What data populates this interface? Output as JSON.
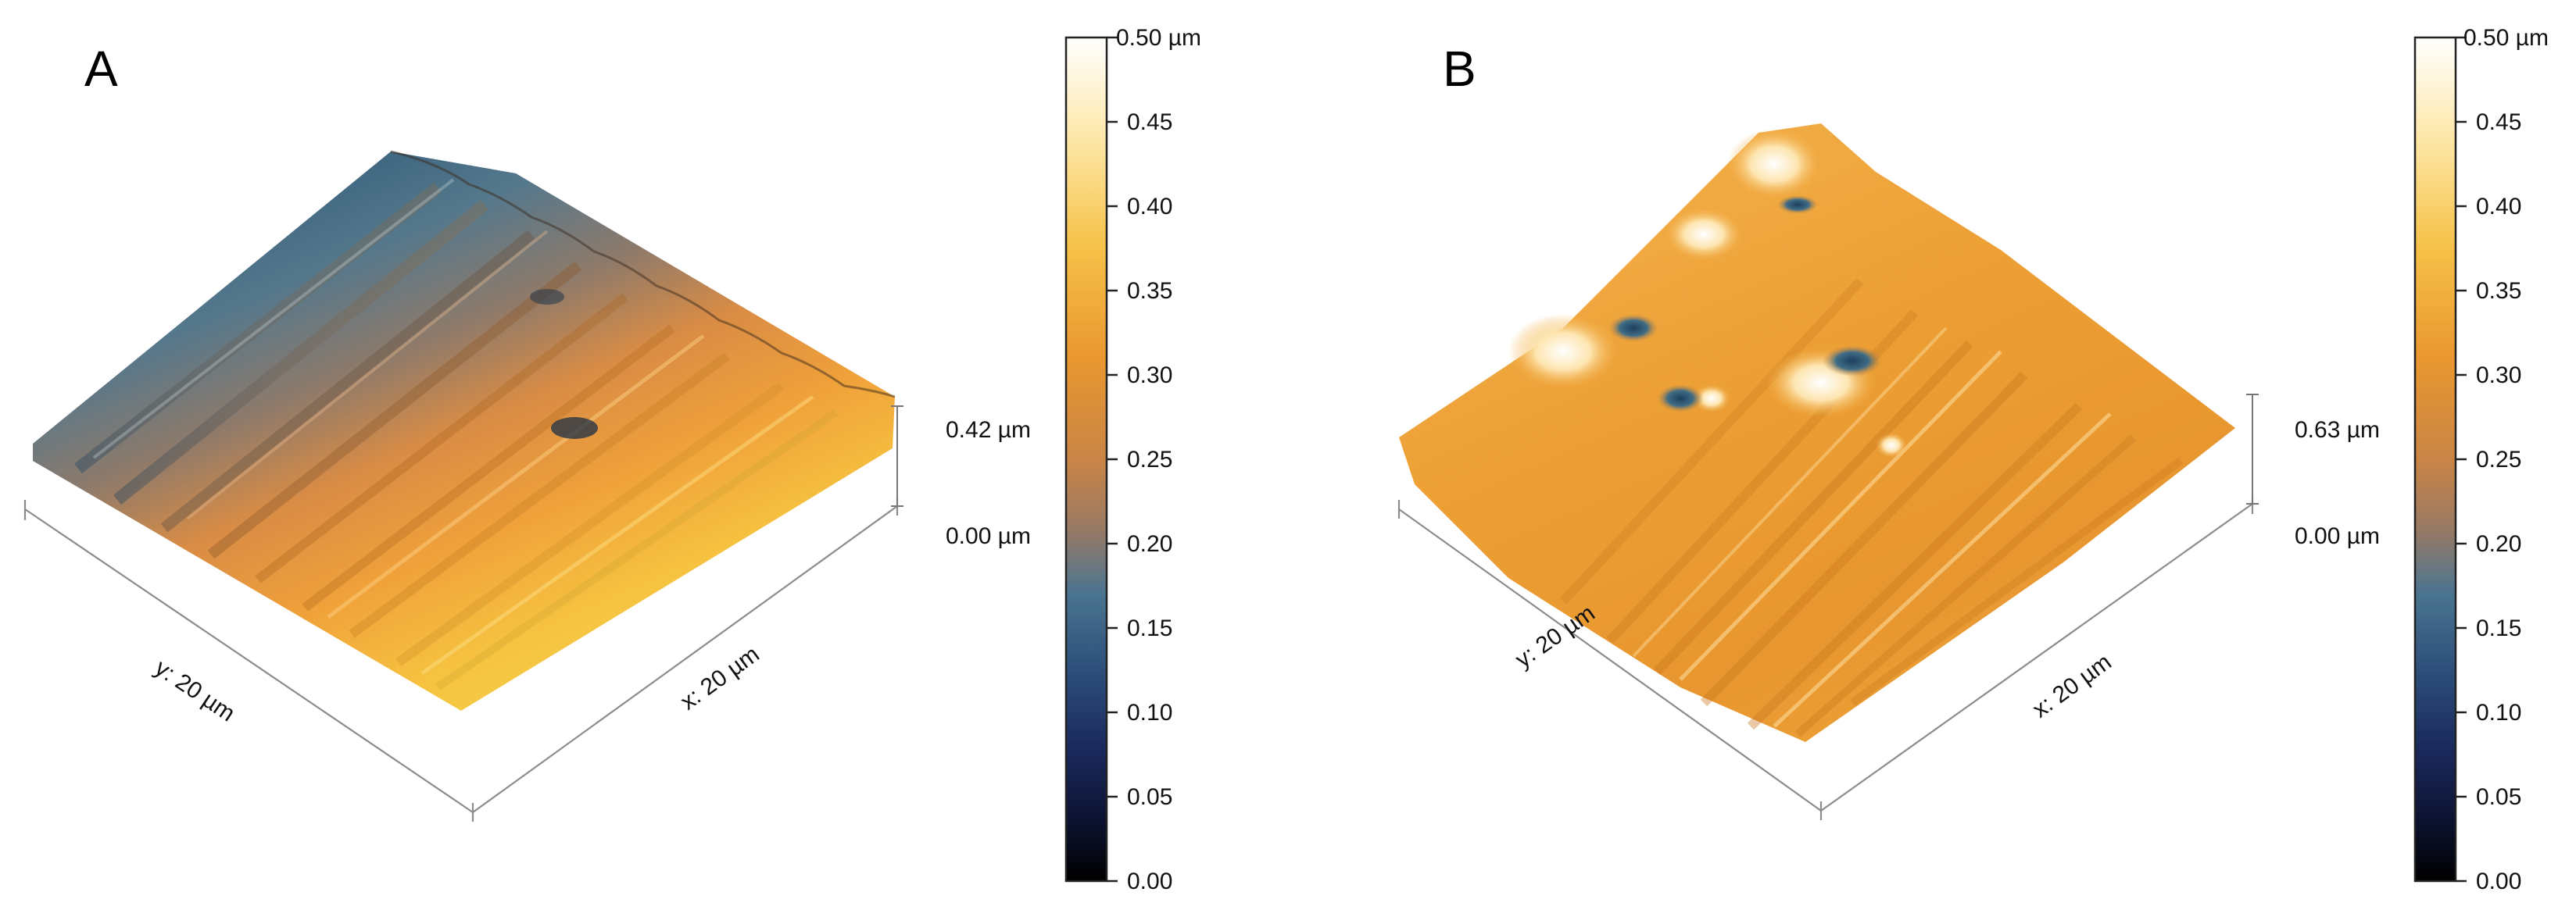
{
  "colors": {
    "deep": "#000000",
    "navy": "#1b2a55",
    "steel": "#3f6e8a",
    "tan": "#a57a54",
    "orange": "#e59234",
    "gold": "#f2b736",
    "cream": "#fff4d6",
    "white": "#ffffff"
  },
  "panels": [
    {
      "letter": "A",
      "height_label": "0.42 µm",
      "zero_label": "0.00 µm",
      "y_axis_label": "y: 20 µm",
      "x_axis_label": "x: 20 µm",
      "colorbar": {
        "top_label": "0.50 µm",
        "ticks": [
          "0.45",
          "0.40",
          "0.35",
          "0.30",
          "0.25",
          "0.20",
          "0.15",
          "0.10",
          "0.05",
          "0.00"
        ]
      }
    },
    {
      "letter": "B",
      "height_label": "0.63 µm",
      "zero_label": "0.00 µm",
      "y_axis_label": "y: 20 µm",
      "x_axis_label": "x: 20 µm",
      "colorbar": {
        "top_label": "0.50 µm",
        "ticks": [
          "0.45",
          "0.40",
          "0.35",
          "0.30",
          "0.25",
          "0.20",
          "0.15",
          "0.10",
          "0.05",
          "0.00"
        ]
      }
    }
  ]
}
